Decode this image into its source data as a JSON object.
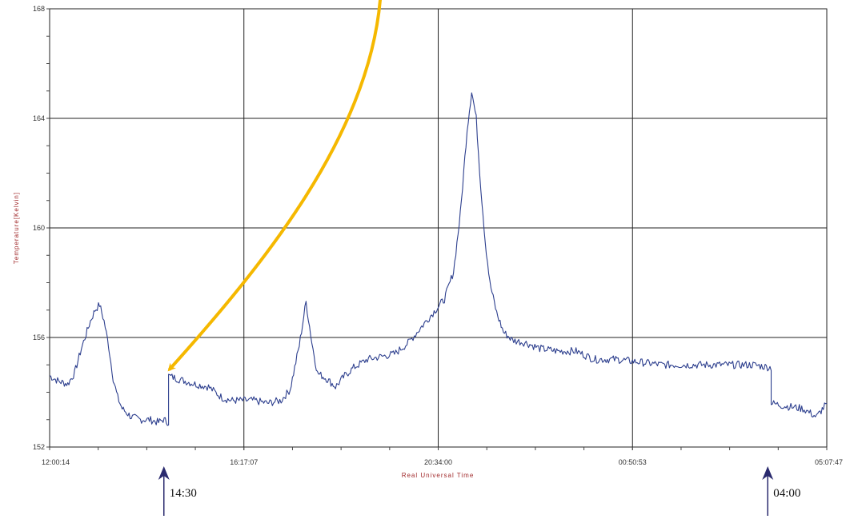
{
  "chart_data": {
    "type": "line",
    "title": "",
    "xlabel": "Real Universal Time",
    "ylabel": "Temperature[Kelvin]",
    "ylim": [
      152,
      168
    ],
    "yticks": [
      152,
      156,
      160,
      164,
      168
    ],
    "xlim_hours": [
      0,
      17.125
    ],
    "xticks": [
      {
        "h": 0,
        "label": "12:00:14"
      },
      {
        "h": 4.281,
        "label": "16:17:07"
      },
      {
        "h": 8.563,
        "label": "20:34:00"
      },
      {
        "h": 12.844,
        "label": "00:50:53"
      },
      {
        "h": 17.125,
        "label": "05:07:47"
      }
    ],
    "minor_xticks_per_major": 4,
    "minor_yticks_per_major": 4,
    "grid": true,
    "series_color": "#2d3f8e",
    "series": [
      {
        "x_hours": [
          0.0,
          0.2,
          0.4,
          0.55,
          0.7,
          0.9,
          1.0,
          1.1,
          1.2,
          1.3,
          1.4,
          1.5,
          1.6,
          1.8,
          2.0,
          2.2,
          2.4,
          2.5,
          2.62,
          2.6201,
          2.8,
          3.2,
          3.5,
          3.8,
          4.0,
          4.2,
          4.5,
          4.8,
          5.1,
          5.3,
          5.5,
          5.65,
          5.78,
          5.9,
          6.1,
          6.3,
          6.5,
          6.7,
          7.0,
          7.3,
          7.6,
          7.9,
          8.2,
          8.5,
          8.7,
          8.9,
          9.05,
          9.2,
          9.3,
          9.4,
          9.5,
          9.6,
          9.7,
          9.85,
          10.0,
          10.2,
          10.5,
          10.8,
          11.2,
          11.6,
          12.0,
          12.5,
          13.0,
          13.5,
          14.0,
          14.5,
          15.0,
          15.5,
          15.9,
          15.9001,
          16.2,
          16.6,
          16.9,
          17.125
        ],
        "y": [
          154.6,
          154.4,
          154.3,
          154.7,
          155.6,
          156.6,
          157.0,
          157.2,
          156.6,
          155.7,
          154.5,
          153.8,
          153.4,
          153.1,
          153.0,
          153.0,
          152.9,
          153.0,
          152.9,
          154.6,
          154.5,
          154.3,
          154.2,
          153.8,
          153.7,
          153.7,
          153.7,
          153.6,
          153.7,
          154.1,
          155.7,
          157.3,
          155.8,
          154.7,
          154.5,
          154.2,
          154.6,
          154.9,
          155.2,
          155.3,
          155.4,
          155.8,
          156.4,
          157.0,
          157.4,
          158.4,
          160.5,
          163.6,
          165.0,
          164.0,
          161.5,
          159.5,
          158.0,
          156.9,
          156.2,
          155.9,
          155.8,
          155.6,
          155.5,
          155.5,
          155.2,
          155.2,
          155.1,
          155.0,
          155.0,
          155.0,
          155.0,
          155.0,
          154.9,
          153.6,
          153.5,
          153.4,
          153.1,
          153.6
        ]
      }
    ],
    "annotations": [
      {
        "type": "arrow",
        "label": "",
        "color": "#f5b800",
        "target_hours": 2.65,
        "target_value": 154.85
      },
      {
        "type": "marker",
        "label": "14:30",
        "color": "#2a2a6e",
        "x_hours": 2.5
      },
      {
        "type": "marker",
        "label": "04:00",
        "color": "#2a2a6e",
        "x_hours": 16.0
      }
    ]
  }
}
